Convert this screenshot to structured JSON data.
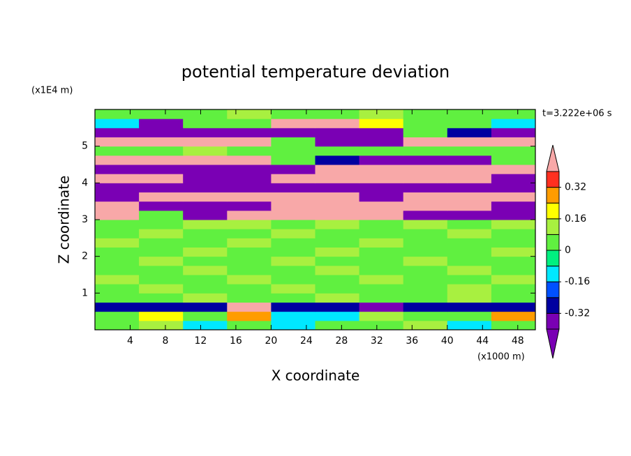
{
  "chart_data": {
    "type": "contour",
    "title": "potential temperature deviation",
    "x_label": "X coordinate",
    "y_label": "Z coordinate",
    "x_unit": "(x1000 m)",
    "y_unit": "(x1E4 m)",
    "time_label": "t=3.222e+06 s",
    "xlim": [
      0,
      50
    ],
    "ylim": [
      0,
      6
    ],
    "xticks": [
      4,
      8,
      12,
      16,
      20,
      24,
      28,
      32,
      36,
      40,
      44,
      48
    ],
    "yticks": [
      1,
      2,
      3,
      4,
      5
    ],
    "levels": [
      -0.4,
      -0.32,
      -0.24,
      -0.16,
      -0.08,
      0,
      0.08,
      0.16,
      0.24,
      0.32,
      0.4
    ],
    "colors": [
      "#7a00b4",
      "#7a00b4",
      "#0000a0",
      "#0050ff",
      "#00e8ff",
      "#00f080",
      "#60f040",
      "#a8f040",
      "#ffff00",
      "#ff9c00",
      "#ff3020",
      "#f8a8a8"
    ],
    "colorbar_ticks": [
      -0.32,
      -0.16,
      0,
      0.16,
      0.32
    ],
    "x": [
      2.5,
      7.5,
      12.5,
      17.5,
      22.5,
      27.5,
      32.5,
      37.5,
      42.5,
      47.5
    ],
    "z": [
      0.125,
      0.375,
      0.625,
      0.875,
      1.125,
      1.375,
      1.625,
      1.875,
      2.125,
      2.375,
      2.625,
      2.875,
      3.125,
      3.375,
      3.625,
      3.875,
      4.125,
      4.375,
      4.625,
      4.875,
      5.125,
      5.375,
      5.625,
      5.875
    ],
    "values": [
      [
        0.02,
        0.1,
        -0.1,
        0.02,
        -0.12,
        0.05,
        0.02,
        0.1,
        -0.1,
        0.02
      ],
      [
        0.02,
        0.2,
        0.05,
        0.3,
        -0.1,
        -0.12,
        0.1,
        0.02,
        0.05,
        0.3
      ],
      [
        -0.3,
        -0.3,
        -0.3,
        0.45,
        -0.3,
        -0.3,
        -0.35,
        -0.3,
        -0.3,
        -0.3
      ],
      [
        0.05,
        0.02,
        0.1,
        0.02,
        0.05,
        0.1,
        0.02,
        0.05,
        0.1,
        0.02
      ],
      [
        0.02,
        0.1,
        0.05,
        0.02,
        0.1,
        0.02,
        0.05,
        0.02,
        0.1,
        0.05
      ],
      [
        0.1,
        0.02,
        0.02,
        0.1,
        0.05,
        0.02,
        0.1,
        0.02,
        0.02,
        0.1
      ],
      [
        0.02,
        0.05,
        0.1,
        0.02,
        0.02,
        0.1,
        0.05,
        0.02,
        0.1,
        0.02
      ],
      [
        0.05,
        0.1,
        0.02,
        0.05,
        0.1,
        0.02,
        0.02,
        0.1,
        0.02,
        0.05
      ],
      [
        0.02,
        0.02,
        0.1,
        0.02,
        0.05,
        0.1,
        0.02,
        0.05,
        0.02,
        0.1
      ],
      [
        0.1,
        0.05,
        0.02,
        0.1,
        0.02,
        0.02,
        0.1,
        0.02,
        0.05,
        0.02
      ],
      [
        0.02,
        0.1,
        0.05,
        0.02,
        0.1,
        0.05,
        0.02,
        0.02,
        0.1,
        0.05
      ],
      [
        0.05,
        0.02,
        0.1,
        0.1,
        0.02,
        0.1,
        0.05,
        0.1,
        0.02,
        0.1
      ],
      [
        0.45,
        0.02,
        -0.45,
        0.45,
        0.45,
        0.45,
        0.45,
        -0.45,
        -0.45,
        -0.45
      ],
      [
        0.45,
        -0.45,
        -0.45,
        -0.45,
        0.45,
        0.45,
        0.45,
        0.45,
        0.45,
        -0.45
      ],
      [
        -0.45,
        0.45,
        0.45,
        0.45,
        0.45,
        0.45,
        -0.45,
        0.45,
        0.45,
        0.45
      ],
      [
        -0.45,
        -0.45,
        -0.45,
        -0.45,
        -0.45,
        -0.45,
        -0.45,
        -0.45,
        -0.45,
        -0.45
      ],
      [
        0.45,
        0.45,
        -0.45,
        -0.45,
        0.45,
        0.45,
        0.45,
        0.45,
        0.45,
        -0.45
      ],
      [
        -0.45,
        -0.45,
        -0.45,
        -0.45,
        -0.45,
        0.45,
        0.45,
        0.45,
        0.45,
        0.45
      ],
      [
        0.45,
        0.45,
        0.45,
        0.45,
        0.02,
        -0.3,
        -0.45,
        -0.45,
        -0.45,
        0.02
      ],
      [
        0.02,
        0.05,
        0.1,
        0.02,
        0.02,
        0.05,
        0.02,
        0.02,
        0.05,
        0.02
      ],
      [
        0.45,
        0.45,
        0.45,
        0.45,
        0.02,
        -0.45,
        -0.45,
        0.45,
        0.45,
        0.45
      ],
      [
        -0.45,
        -0.45,
        -0.45,
        -0.45,
        -0.45,
        -0.45,
        -0.45,
        0.02,
        -0.3,
        -0.45
      ],
      [
        -0.12,
        -0.45,
        0.02,
        0.02,
        0.45,
        0.45,
        0.2,
        0.02,
        0.02,
        -0.12
      ],
      [
        0.05,
        0.02,
        0.02,
        0.1,
        0.02,
        0.05,
        0.1,
        0.02,
        0.05,
        0.02
      ]
    ]
  }
}
